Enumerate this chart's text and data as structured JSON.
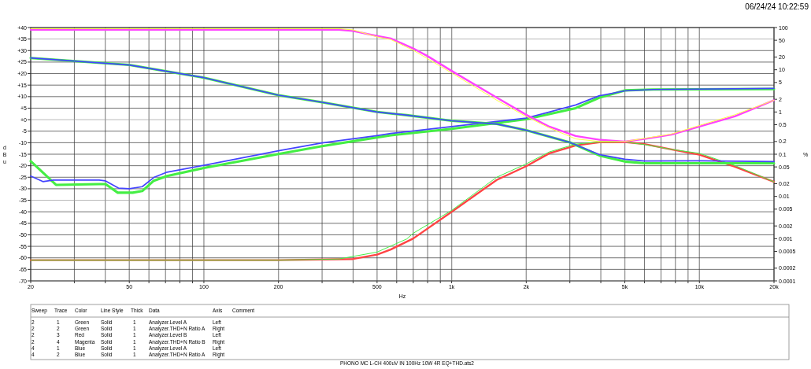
{
  "chart_data": [
    {
      "type": "line",
      "xlabel": "Hz",
      "ylabel": "d B u",
      "log": "x",
      "grid": true,
      "marker": "none",
      "line_style": "solid",
      "xlim": [
        20,
        20000
      ],
      "xticks": [
        20,
        {
          "value": 30,
          "label": null
        },
        {
          "value": 40,
          "label": null
        },
        50,
        {
          "value": 60,
          "label": null
        },
        {
          "value": 70,
          "label": null
        },
        {
          "value": 80,
          "label": null
        },
        {
          "value": 90,
          "label": null
        },
        100,
        200,
        {
          "value": 300,
          "label": null
        },
        {
          "value": 400,
          "label": null
        },
        500,
        {
          "value": 600,
          "label": null
        },
        {
          "value": 700,
          "label": null
        },
        {
          "value": 800,
          "label": null
        },
        {
          "value": 900,
          "label": null
        },
        {
          "value": 1000,
          "label": "1k"
        },
        {
          "value": 2000,
          "label": "2k"
        },
        {
          "value": 3000,
          "label": null
        },
        {
          "value": 4000,
          "label": null
        },
        {
          "value": 5000,
          "label": "5k"
        },
        {
          "value": 6000,
          "label": null
        },
        {
          "value": 7000,
          "label": null
        },
        {
          "value": 8000,
          "label": null
        },
        {
          "value": 9000,
          "label": null
        },
        {
          "value": 10000,
          "label": "10k"
        },
        {
          "value": 20000,
          "label": "20k"
        }
      ],
      "ylim": [
        -70,
        40
      ],
      "yticks": [
        -70,
        -65,
        -60,
        -55,
        -50,
        -45,
        -40,
        -35,
        -30,
        -25,
        -20,
        -15,
        -10,
        -5,
        {
          "value": 0,
          "label": "+0"
        },
        {
          "value": 5,
          "label": "+5"
        },
        {
          "value": 10,
          "label": "+10"
        },
        {
          "value": 15,
          "label": "+15"
        },
        {
          "value": 20,
          "label": "+20"
        },
        {
          "value": 25,
          "label": "+25"
        },
        {
          "value": 30,
          "label": "+30"
        },
        {
          "value": 35,
          "label": "+35"
        },
        {
          "value": 40,
          "label": "+40"
        }
      ],
      "series": [
        {
          "color": "#44ee44",
          "x": [
            20,
            25.3,
            37.8,
            40.1,
            44.9,
            51.6,
            56.4,
            62.8,
            71,
            100,
            200,
            300,
            500,
            568,
            1000,
            2000,
            3170,
            3950,
            5000,
            6500,
            20000
          ],
          "values": [
            -18,
            -28.3,
            -28,
            -28,
            -31.7,
            -31.7,
            -31,
            -26.5,
            -24.5,
            -21,
            -14.9,
            -11.5,
            -7.7,
            -6.8,
            -4,
            0.2,
            5,
            9.6,
            12.7,
            13.1,
            13.3
          ]
        },
        {
          "color": "#ff4444",
          "x": [
            20,
            100,
            200,
            400,
            500,
            568,
            700,
            1000,
            1520,
            2000,
            2480,
            3170,
            3950,
            5000,
            6000,
            7700,
            10000,
            13900,
            20000
          ],
          "values": [
            -61,
            -61,
            -61,
            -60.5,
            -58.6,
            -56.4,
            -51.6,
            -40,
            -26.2,
            -20.2,
            -14.6,
            -11.2,
            -9.8,
            -9.7,
            -10.6,
            -12.9,
            -15.2,
            -20.4,
            -27
          ]
        },
        {
          "color": "#4444ff",
          "x": [
            20,
            22.4,
            24.7,
            37.8,
            40.1,
            45.2,
            50,
            56.4,
            62.8,
            71,
            100,
            200,
            300,
            500,
            568,
            1000,
            1520,
            2000,
            2480,
            3170,
            3950,
            5000,
            6500,
            20000
          ],
          "values": [
            -24.5,
            -26.9,
            -26.2,
            -26.2,
            -26.6,
            -29.7,
            -30,
            -29.1,
            -25.1,
            -22.8,
            -19.8,
            -13.5,
            -10.1,
            -6.9,
            -6,
            -3,
            -0.8,
            0.7,
            3.3,
            6.4,
            10.4,
            12.5,
            13.1,
            13.6
          ]
        },
        {
          "color": "#44ee44",
          "x": [
            20,
            100,
            200,
            350,
            500,
            659,
            700,
            1000,
            1520,
            2000,
            2480,
            3170,
            3950,
            5000,
            6000,
            7700,
            10000,
            13900,
            20000
          ],
          "values": [
            -61,
            -61,
            -61,
            -60.5,
            -57.5,
            -51.8,
            -49.3,
            -39.4,
            -25,
            -19.2,
            -14,
            -10.6,
            -9.7,
            -9.7,
            -10.8,
            -12.9,
            -14.6,
            -19.9,
            -27
          ]
        }
      ],
      "annotations": [
        "06/24/24 10:22:59",
        "Sweep",
        "Trace",
        "Color",
        "Line Style",
        "Thick",
        "Data",
        "Axis",
        "Comment",
        "2",
        "1",
        "Green",
        "Solid",
        "1",
        "Analyzer.Level A",
        "Left",
        "2",
        "2",
        "Green",
        "Solid",
        "1",
        "Analyzer.THD+N Ratio A",
        "Right",
        "2",
        "3",
        "Red",
        "Solid",
        "1",
        "Analyzer.Level B",
        "Left",
        "2",
        "4",
        "Magenta",
        "Solid",
        "1",
        "Analyzer.THD+N Ratio B",
        "Right",
        "4",
        "1",
        "Blue",
        "Solid",
        "1",
        "Analyzer.Level A",
        "Left",
        "4",
        "2",
        "Blue",
        "Solid",
        "1",
        "Analyzer.THD+N Ratio A",
        "Right",
        "PHONO MC  L-CH 400uV IN 100Hz 10W 4R EQ+THD.ats2"
      ]
    },
    {
      "type": "line",
      "ylabel": "%",
      "log": "xy",
      "tick_labels": "y",
      "marker": "none",
      "line_style": "solid",
      "xlim": [
        20,
        20000
      ],
      "ylim": [
        0.0001,
        100
      ],
      "yticks": [
        0.0001,
        0.0002,
        0.0005,
        0.001,
        0.002,
        0.005,
        0.01,
        0.02,
        0.05,
        0.1,
        0.2,
        0.5,
        1,
        2,
        5,
        10,
        20,
        50,
        100
      ],
      "series": [
        {
          "color": "#44ee44",
          "x": [
            20,
            50,
            100,
            200,
            300,
            500,
            659,
            1000,
            1520,
            2000,
            3000,
            3950,
            5000,
            6000,
            10000,
            20000
          ],
          "values": [
            19,
            13,
            6.5,
            2.5,
            1.7,
            1.0,
            0.84,
            0.62,
            0.52,
            0.37,
            0.19,
            0.093,
            0.067,
            0.061,
            0.061,
            0.061
          ]
        },
        {
          "color": "#ff44ff",
          "x": [
            20,
            350,
            400,
            500,
            568,
            700,
            800,
            1000,
            1520,
            2000,
            2480,
            3170,
            3950,
            5000,
            6000,
            7700,
            10000,
            13900,
            20000
          ],
          "values": [
            89,
            89,
            83,
            63,
            55,
            32,
            21,
            9.4,
            2.2,
            0.86,
            0.45,
            0.27,
            0.22,
            0.2,
            0.23,
            0.29,
            0.45,
            0.79,
            1.9
          ]
        },
        {
          "color": "#4444ff",
          "x": [
            20,
            50,
            100,
            200,
            300,
            500,
            659,
            1000,
            1520,
            2000,
            3000,
            3950,
            5000,
            6000,
            10000,
            20000
          ],
          "values": [
            19,
            13,
            6.5,
            2.5,
            1.7,
            1.0,
            0.84,
            0.62,
            0.52,
            0.37,
            0.19,
            0.098,
            0.076,
            0.069,
            0.07,
            0.067
          ]
        },
        {
          "color": "#ffff44",
          "x": [
            20,
            350,
            400,
            500,
            568,
            700,
            1000,
            1520,
            2000,
            2480,
            3170,
            3950,
            5000,
            7700,
            10000,
            13900,
            20000
          ],
          "values": [
            94,
            94,
            88,
            60,
            52,
            29,
            8.4,
            1.9,
            0.78,
            0.42,
            0.23,
            0.2,
            0.2,
            0.3,
            0.48,
            0.86,
            1.9
          ]
        }
      ]
    }
  ]
}
